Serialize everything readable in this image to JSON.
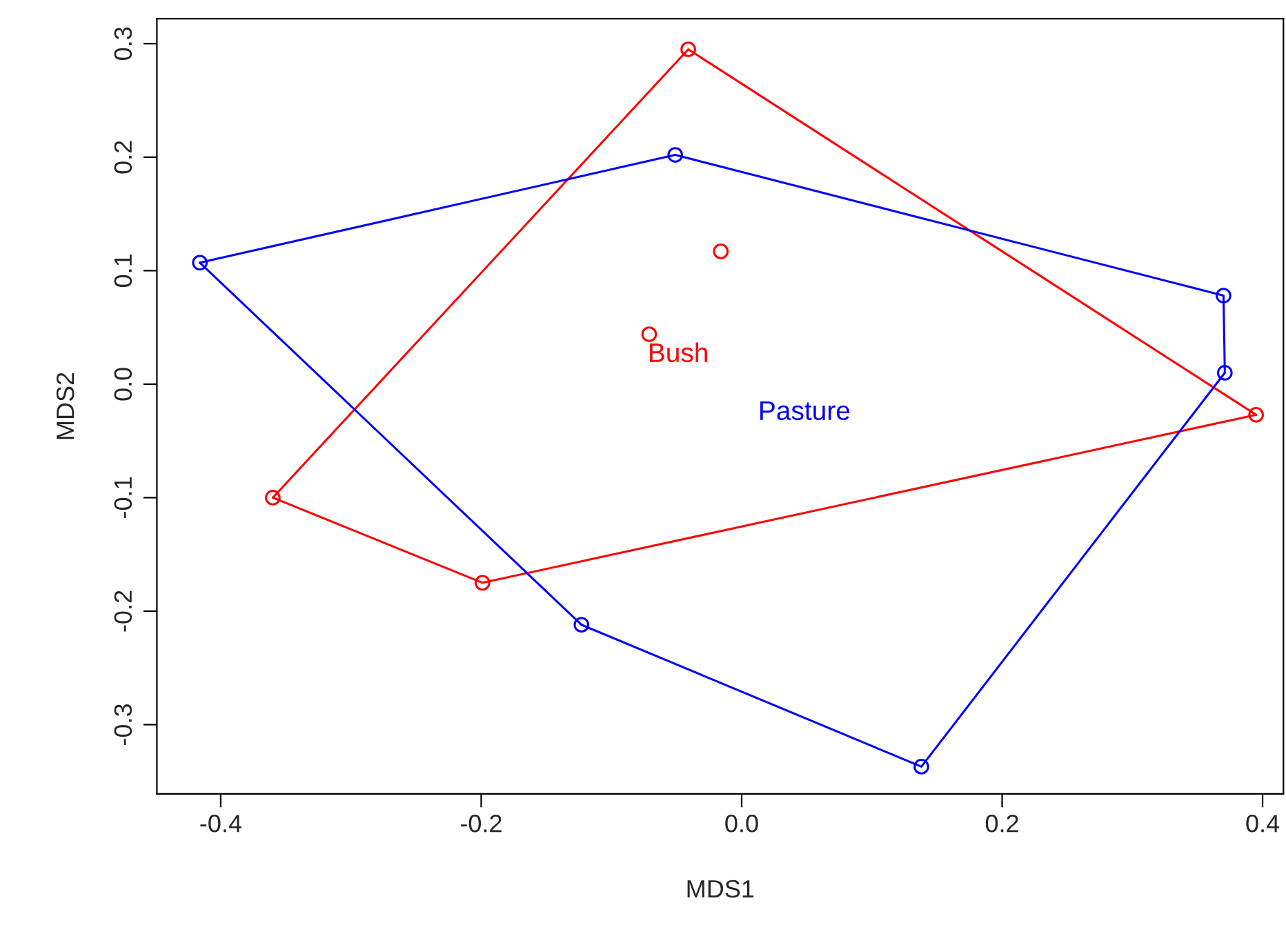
{
  "chart_data": {
    "type": "scatter",
    "xlabel": "MDS1",
    "ylabel": "MDS2",
    "xlim": [
      -0.449,
      0.416
    ],
    "ylim": [
      -0.361,
      0.322
    ],
    "xticks": [
      -0.4,
      -0.2,
      {
        "value": 0.0,
        "label": "0.0"
      },
      0.2,
      0.4
    ],
    "yticks": [
      -0.3,
      -0.2,
      -0.1,
      {
        "value": 0.0,
        "label": "0.0"
      },
      0.1,
      0.2,
      0.3
    ],
    "marker": "circle",
    "grid": false,
    "legend": false,
    "series": [
      {
        "name": "Bush",
        "color": "#ff0000",
        "x": [
          -0.041,
          -0.36,
          -0.199,
          0.395,
          -0.016,
          -0.071
        ],
        "values": [
          0.295,
          -0.1,
          -0.175,
          -0.027,
          0.117,
          0.044
        ]
      },
      {
        "name": "Pasture",
        "color": "#0000ff",
        "x": [
          -0.051,
          -0.416,
          -0.123,
          0.138,
          0.371,
          0.37
        ],
        "values": [
          0.202,
          0.107,
          -0.212,
          -0.337,
          0.01,
          0.078
        ]
      },
      {
        "type": "line",
        "marker": "none",
        "color": "#ff0000",
        "x": [
          -0.36,
          -0.041,
          0.395
        ],
        "values": [
          -0.1,
          0.295,
          -0.027
        ]
      },
      {
        "type": "line",
        "marker": "none",
        "color": "#ff0000",
        "x": [
          -0.36,
          -0.199,
          0.395
        ],
        "values": [
          -0.1,
          -0.175,
          -0.027
        ]
      },
      {
        "type": "line",
        "marker": "none",
        "color": "#0000ff",
        "x": [
          -0.416,
          -0.051,
          0.37,
          0.371
        ],
        "values": [
          0.107,
          0.202,
          0.078,
          0.01
        ]
      },
      {
        "type": "line",
        "marker": "none",
        "color": "#0000ff",
        "x": [
          -0.416,
          -0.123,
          0.138,
          0.371
        ],
        "values": [
          0.107,
          -0.212,
          -0.337,
          0.01
        ]
      }
    ]
  }
}
